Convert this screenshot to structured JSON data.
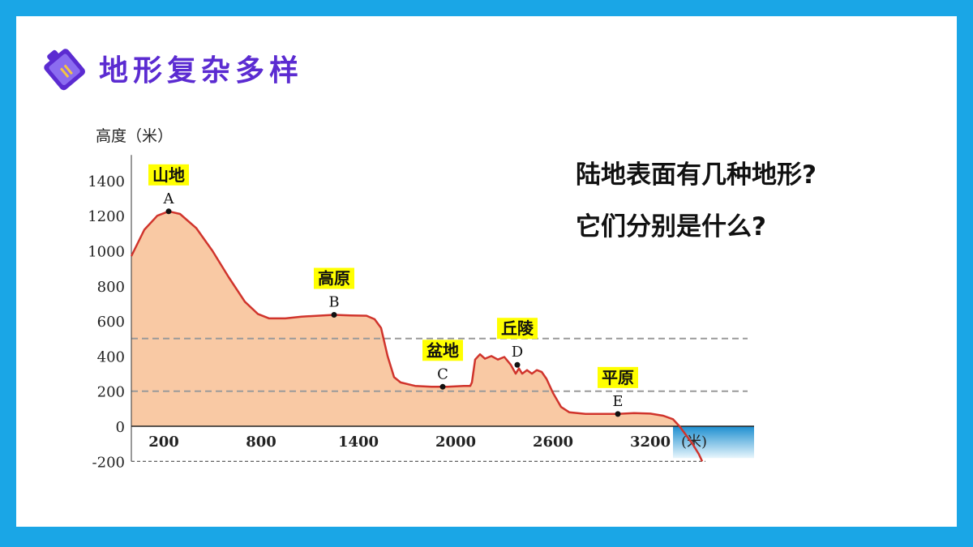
{
  "title": "地形复杂多样",
  "questions": [
    "陆地表面有几种地形?",
    "它们分别是什么?"
  ],
  "colors": {
    "frame": "#1aa6e6",
    "title": "#5b2bd1",
    "terrain_fill": "#f9c9a4",
    "terrain_line": "#d0342c",
    "label_bg": "#ffff00",
    "sea": "#1d8fd0"
  },
  "chart_data": {
    "type": "area",
    "ylabel": "高度（米）",
    "xunit": "米",
    "yticks": [
      1400,
      1200,
      1000,
      800,
      600,
      400,
      200,
      0,
      -200
    ],
    "xticks": [
      200,
      800,
      1400,
      2000,
      2600,
      3200
    ],
    "ylim": [
      -200,
      1500
    ],
    "xlim": [
      0,
      3520
    ],
    "reference_lines": [
      500,
      200
    ],
    "landforms": [
      {
        "point": "A",
        "name": "山地",
        "x": 230,
        "y": 1225
      },
      {
        "point": "B",
        "name": "高原",
        "x": 1250,
        "y": 635
      },
      {
        "point": "C",
        "name": "盆地",
        "x": 1920,
        "y": 225
      },
      {
        "point": "D",
        "name": "丘陵",
        "x": 2380,
        "y": 350
      },
      {
        "point": "E",
        "name": "平原",
        "x": 3000,
        "y": 70
      }
    ],
    "profile": {
      "x": [
        0,
        80,
        160,
        230,
        300,
        400,
        500,
        600,
        700,
        780,
        850,
        950,
        1050,
        1150,
        1250,
        1350,
        1450,
        1500,
        1540,
        1580,
        1620,
        1660,
        1750,
        1850,
        1950,
        2050,
        2090,
        2100,
        2120,
        2150,
        2180,
        2220,
        2260,
        2300,
        2340,
        2370,
        2390,
        2410,
        2440,
        2470,
        2500,
        2530,
        2560,
        2600,
        2650,
        2700,
        2750,
        2800,
        2900,
        3000,
        3100,
        3200,
        3280,
        3340,
        3380,
        3420,
        3460,
        3500,
        3520
      ],
      "y": [
        970,
        1120,
        1200,
        1225,
        1210,
        1130,
        1000,
        850,
        710,
        640,
        615,
        615,
        625,
        630,
        635,
        632,
        630,
        610,
        560,
        400,
        280,
        250,
        230,
        225,
        225,
        230,
        230,
        250,
        380,
        410,
        385,
        400,
        380,
        395,
        350,
        300,
        330,
        300,
        320,
        300,
        320,
        310,
        270,
        190,
        110,
        80,
        75,
        70,
        70,
        70,
        75,
        72,
        60,
        40,
        0,
        -50,
        -100,
        -160,
        -200
      ]
    }
  }
}
